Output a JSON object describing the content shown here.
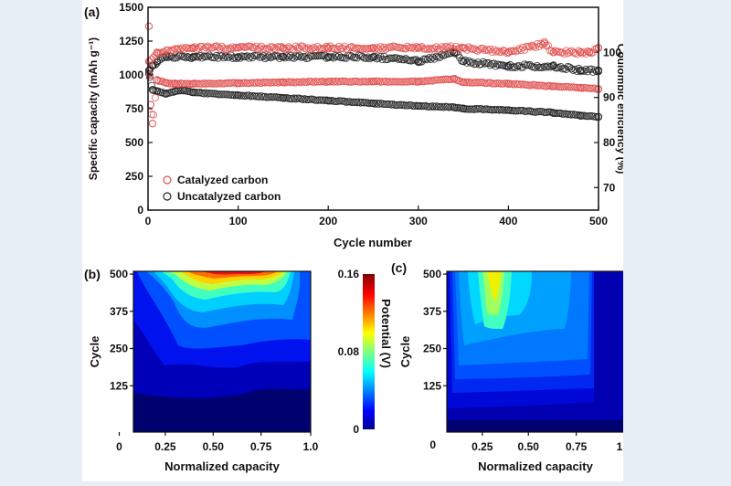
{
  "figure": {
    "panel_a": "(a)",
    "panel_b": "(b)",
    "panel_c": "(c)"
  },
  "chart_data": [
    {
      "panel": "(a)",
      "type": "scatter",
      "xlabel": "Cycle number",
      "ylabel": "Specific capacity (mAh g⁻¹)",
      "y2label": "Coulombic efficiency (%)",
      "xlim": [
        0,
        500
      ],
      "ylim": [
        0,
        1500
      ],
      "y2lim": [
        65,
        110
      ],
      "xticks": [
        0,
        100,
        200,
        300,
        400,
        500
      ],
      "yticks": [
        0,
        250,
        500,
        750,
        1000,
        1250,
        1500
      ],
      "y2ticks": [
        70,
        80,
        90,
        100
      ],
      "legend_position": "bottom-left",
      "legend": [
        "Catalyzed carbon",
        "Uncatalyzed carbon"
      ],
      "colors": {
        "catalyzed": "#e0504f",
        "uncatalyzed": "#222222"
      },
      "series": [
        {
          "name": "Catalyzed carbon",
          "axis": "capacity",
          "x": [
            1,
            2,
            3,
            5,
            10,
            20,
            30,
            50,
            100,
            150,
            200,
            250,
            300,
            340,
            350,
            400,
            450,
            480,
            500
          ],
          "y": [
            1360,
            1000,
            780,
            640,
            960,
            940,
            935,
            935,
            940,
            945,
            950,
            950,
            950,
            970,
            945,
            935,
            915,
            905,
            895
          ]
        },
        {
          "name": "Catalyzed carbon",
          "axis": "efficiency",
          "x": [
            1,
            10,
            50,
            100,
            150,
            200,
            250,
            300,
            350,
            400,
            440,
            450,
            480,
            490,
            500
          ],
          "y": [
            98,
            100,
            101,
            101,
            101,
            101,
            101,
            101,
            101,
            100,
            102,
            100,
            100,
            100,
            101
          ]
        },
        {
          "name": "Uncatalyzed carbon",
          "axis": "capacity",
          "x": [
            1,
            5,
            10,
            20,
            30,
            40,
            50,
            100,
            150,
            200,
            250,
            300,
            340,
            350,
            400,
            450,
            480,
            500
          ],
          "y": [
            1010,
            890,
            880,
            860,
            880,
            885,
            870,
            850,
            830,
            810,
            790,
            770,
            760,
            750,
            740,
            720,
            700,
            690
          ]
        },
        {
          "name": "Uncatalyzed carbon",
          "axis": "efficiency",
          "x": [
            1,
            5,
            10,
            20,
            50,
            100,
            150,
            200,
            250,
            300,
            340,
            350,
            400,
            450,
            480,
            500
          ],
          "y": [
            96,
            97,
            98,
            99,
            99,
            99,
            99,
            99,
            99,
            98,
            100,
            98,
            97,
            97,
            96,
            96
          ]
        }
      ]
    },
    {
      "panel": "(b)",
      "type": "heatmap",
      "xlabel": "Normalized capacity",
      "ylabel": "Cycle",
      "xticks": [
        "0",
        "0.25",
        "0.50",
        "0.75",
        "1.0"
      ],
      "yticks": [
        "125",
        "250",
        "375",
        "500"
      ],
      "colorbar_label": "Potential (V)",
      "colorbar_ticks": [
        "0",
        "0.08",
        "0.16"
      ],
      "clim": [
        0,
        0.16
      ]
    },
    {
      "panel": "(c)",
      "type": "heatmap",
      "xlabel": "Normalized capacity",
      "ylabel": "Cycle",
      "xticks": [
        "0.25",
        "0.50",
        "0.75",
        "1.0"
      ],
      "yticks": [
        "125",
        "250",
        "375",
        "500"
      ]
    }
  ]
}
